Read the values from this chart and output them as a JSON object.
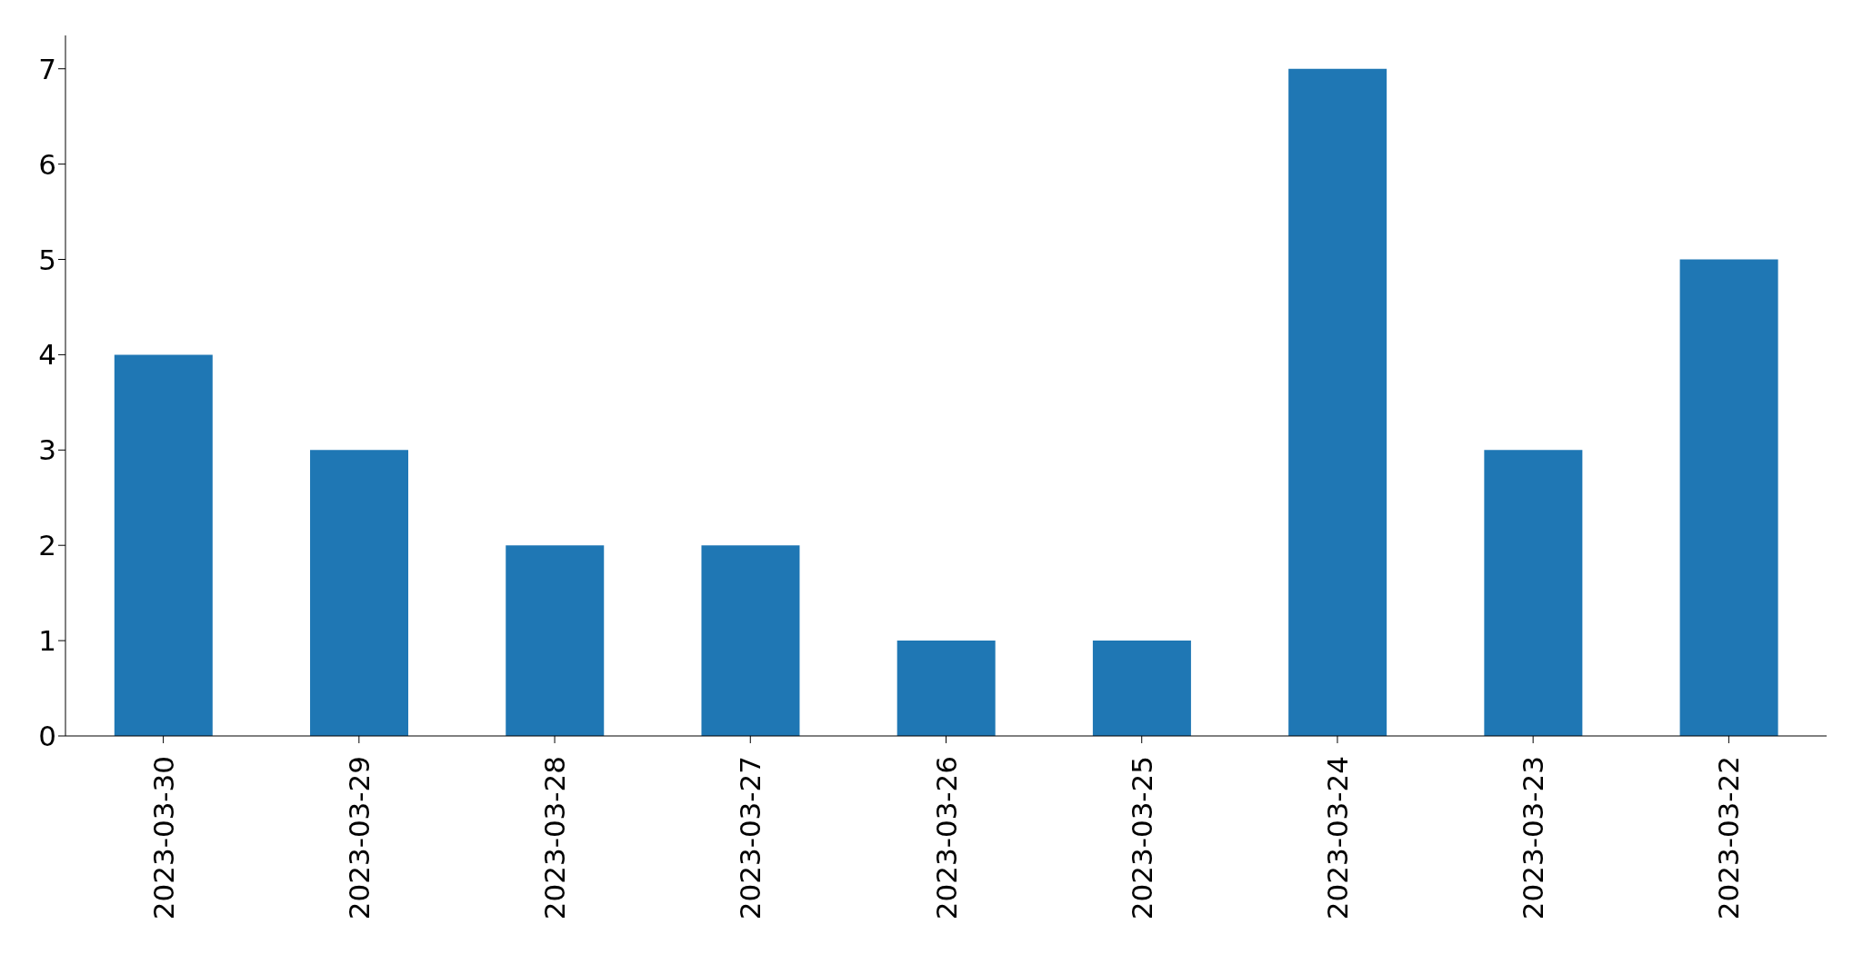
{
  "chart_data": {
    "type": "bar",
    "categories": [
      "2023-03-30",
      "2023-03-29",
      "2023-03-28",
      "2023-03-27",
      "2023-03-26",
      "2023-03-25",
      "2023-03-24",
      "2023-03-23",
      "2023-03-22"
    ],
    "values": [
      4,
      3,
      2,
      2,
      1,
      1,
      7,
      3,
      5
    ],
    "color": "#1f77b4",
    "ylim": [
      0,
      7.35
    ],
    "yticks": [
      0,
      1,
      2,
      3,
      4,
      5,
      6,
      7
    ],
    "grid": false,
    "legend": false
  }
}
